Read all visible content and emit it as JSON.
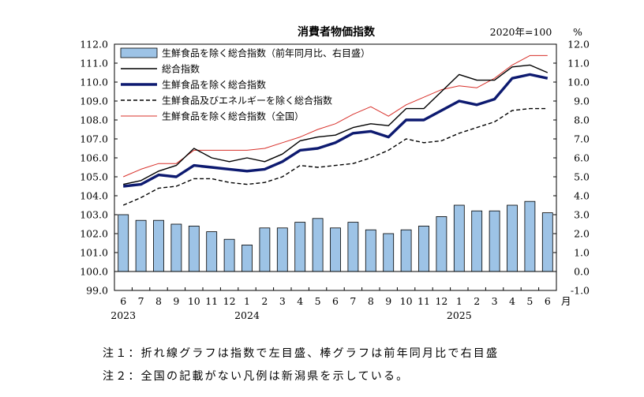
{
  "chart_data": {
    "type": "bar+line",
    "title": "消費者物価指数",
    "base_note": "2020年=100",
    "right_unit": "%",
    "month_suffix": "月",
    "categories": [
      "6",
      "7",
      "8",
      "9",
      "10",
      "11",
      "12",
      "1",
      "2",
      "3",
      "4",
      "5",
      "6",
      "7",
      "8",
      "9",
      "10",
      "11",
      "12",
      "1",
      "2",
      "3",
      "4",
      "5",
      "6"
    ],
    "year_labels": [
      {
        "index": 0,
        "label": "2023"
      },
      {
        "index": 7,
        "label": "2024"
      },
      {
        "index": 19,
        "label": "2025"
      }
    ],
    "left_axis": {
      "min": 99.0,
      "max": 112.0,
      "step": 1.0,
      "ticks": [
        "99.0",
        "100.0",
        "101.0",
        "102.0",
        "103.0",
        "104.0",
        "105.0",
        "106.0",
        "107.0",
        "108.0",
        "109.0",
        "110.0",
        "111.0",
        "112.0"
      ]
    },
    "right_axis": {
      "min": -1.0,
      "max": 12.0,
      "step": 1.0,
      "ticks": [
        "-1.0",
        "0.0",
        "1.0",
        "2.0",
        "3.0",
        "4.0",
        "5.0",
        "6.0",
        "7.0",
        "8.0",
        "9.0",
        "10.0",
        "11.0",
        "12.0"
      ]
    },
    "bars": {
      "name": "生鮮食品を除く総合指数（前年同月比、右目盛）",
      "color": "#9dc3e6",
      "values": [
        3.0,
        2.7,
        2.7,
        2.5,
        2.4,
        2.1,
        1.7,
        1.4,
        2.3,
        2.3,
        2.6,
        2.8,
        2.3,
        2.6,
        2.2,
        2.0,
        2.2,
        2.4,
        2.9,
        3.5,
        3.2,
        3.2,
        3.5,
        3.7,
        3.1
      ]
    },
    "series": [
      {
        "name": "総合指数",
        "color": "#000000",
        "width": 1.4,
        "dash": "",
        "values": [
          104.6,
          104.8,
          105.3,
          105.6,
          106.5,
          106.0,
          105.8,
          106.0,
          105.8,
          106.2,
          106.9,
          107.1,
          107.2,
          107.6,
          107.8,
          107.7,
          108.6,
          108.6,
          109.5,
          110.4,
          110.1,
          110.1,
          110.8,
          110.9,
          110.5
        ]
      },
      {
        "name": "生鮮食品を除く総合指数",
        "color": "#0d1a70",
        "width": 3.4,
        "dash": "",
        "values": [
          104.5,
          104.6,
          105.1,
          105.0,
          105.6,
          105.5,
          105.4,
          105.3,
          105.4,
          105.8,
          106.4,
          106.5,
          106.8,
          107.3,
          107.4,
          107.1,
          108.0,
          108.0,
          108.5,
          109.0,
          108.8,
          109.1,
          110.2,
          110.4,
          110.2
        ]
      },
      {
        "name": "生鮮食品及びエネルギーを除く総合指数",
        "color": "#000000",
        "width": 1.4,
        "dash": "5,3",
        "values": [
          103.5,
          103.9,
          104.4,
          104.5,
          104.9,
          104.9,
          104.7,
          104.6,
          104.7,
          105.0,
          105.6,
          105.5,
          105.6,
          105.7,
          106.0,
          106.4,
          107.0,
          106.8,
          106.9,
          107.3,
          107.6,
          107.9,
          108.5,
          108.6,
          108.6
        ]
      },
      {
        "name": "生鮮食品を除く総合指数（全国）",
        "color": "#d8302a",
        "width": 1.0,
        "dash": "",
        "values": [
          105.0,
          105.4,
          105.7,
          105.7,
          106.4,
          106.4,
          106.4,
          106.4,
          106.5,
          106.8,
          107.1,
          107.5,
          107.8,
          108.3,
          108.7,
          108.2,
          108.8,
          109.2,
          109.6,
          109.8,
          109.7,
          110.2,
          110.9,
          111.4,
          111.4
        ]
      }
    ]
  },
  "notes": [
    "注１：折れ線グラフは指数で左目盛、棒グラフは前年同月比で右目盛",
    "注２：全国の記載がない凡例は新潟県を示している。"
  ]
}
